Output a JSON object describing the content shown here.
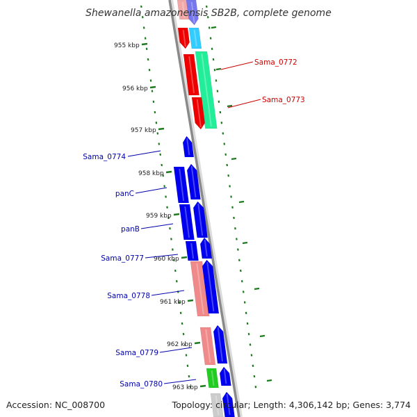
{
  "title": "Shewanella amazonensis SB2B, complete genome",
  "accession": "Accession: NC_008700",
  "topology": "Topology: circular; Length: 4,306,142 bp; Genes: 3,774",
  "colors": {
    "backbone": "#8a8a8a",
    "tick": "#1e7a1e",
    "label_forward": "#cc0000",
    "label_reverse": "#0000aa"
  },
  "kbp_ticks": [
    "955 kbp",
    "956 kbp",
    "957 kbp",
    "958 kbp",
    "959 kbp",
    "960 kbp",
    "961 kbp",
    "962 kbp",
    "963 kbp"
  ],
  "gene_labels": [
    {
      "text": "Sama_0772",
      "strand": "forward"
    },
    {
      "text": "Sama_0773",
      "strand": "forward"
    },
    {
      "text": "Sama_0774",
      "strand": "reverse"
    },
    {
      "text": "panC",
      "strand": "reverse"
    },
    {
      "text": "panB",
      "strand": "reverse"
    },
    {
      "text": "Sama_0777",
      "strand": "reverse"
    },
    {
      "text": "Sama_0778",
      "strand": "reverse"
    },
    {
      "text": "Sama_0779",
      "strand": "reverse"
    },
    {
      "text": "Sama_0780",
      "strand": "reverse"
    }
  ]
}
